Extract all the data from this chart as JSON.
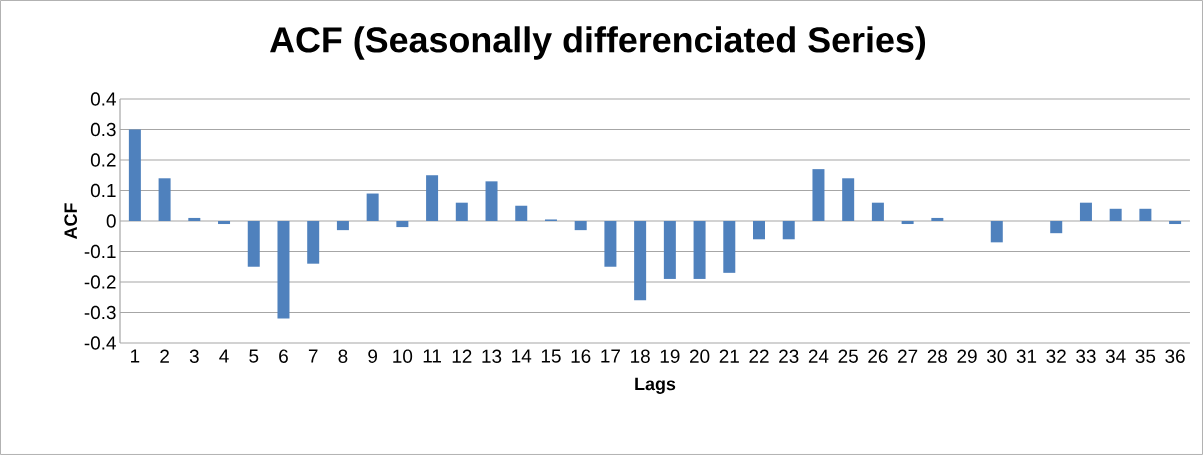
{
  "chart_data": {
    "type": "bar",
    "title": "ACF (Seasonally differenciated Series)",
    "xlabel": "Lags",
    "ylabel": "ACF",
    "categories": [
      "1",
      "2",
      "3",
      "4",
      "5",
      "6",
      "7",
      "8",
      "9",
      "10",
      "11",
      "12",
      "13",
      "14",
      "15",
      "16",
      "17",
      "18",
      "19",
      "20",
      "21",
      "22",
      "23",
      "24",
      "25",
      "26",
      "27",
      "28",
      "29",
      "30",
      "31",
      "32",
      "33",
      "34",
      "35",
      "36"
    ],
    "values": [
      0.3,
      0.14,
      0.01,
      -0.01,
      -0.15,
      -0.32,
      -0.14,
      -0.03,
      0.09,
      -0.02,
      0.15,
      0.06,
      0.13,
      0.05,
      0.005,
      -0.03,
      -0.15,
      -0.26,
      -0.19,
      -0.19,
      -0.17,
      -0.06,
      -0.06,
      0.17,
      0.14,
      0.06,
      -0.01,
      0.01,
      0,
      -0.07,
      0,
      -0.04,
      0.06,
      0.04,
      0.04,
      -0.01
    ],
    "color": "#4f81bd",
    "ylim": [
      -0.4,
      0.4
    ],
    "yticks": [
      -0.4,
      -0.3,
      -0.2,
      -0.1,
      0,
      0.1,
      0.2,
      0.3,
      0.4
    ],
    "grid": "y"
  }
}
